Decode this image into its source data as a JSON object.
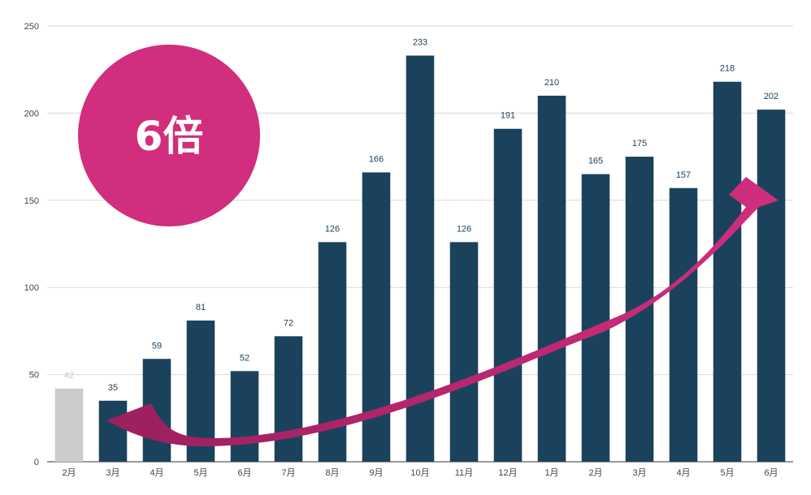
{
  "colors": {
    "bar": "#1b425c",
    "bar_baseline": "#cccccc",
    "data_label": "#1b425c",
    "data_label_baseline": "#c8c8c8",
    "grid": "#d9d9d9",
    "accent": "#d12e7d",
    "arrow_dark": "#9b1f5e"
  },
  "badge": {
    "text": "6倍"
  },
  "chart_data": {
    "type": "bar",
    "categories": [
      "2月",
      "3月",
      "4月",
      "5月",
      "6月",
      "7月",
      "8月",
      "9月",
      "10月",
      "11月",
      "12月",
      "1月",
      "2月",
      "3月",
      "4月",
      "5月",
      "6月"
    ],
    "values": [
      42,
      35,
      59,
      81,
      52,
      72,
      126,
      166,
      233,
      126,
      191,
      210,
      165,
      175,
      157,
      218,
      202
    ],
    "highlight_first_bar_grey": true,
    "ylim": [
      0,
      250
    ],
    "yticks": [
      0,
      50,
      100,
      150,
      200,
      250
    ],
    "grid": true,
    "title": "",
    "xlabel": "",
    "ylabel": ""
  }
}
